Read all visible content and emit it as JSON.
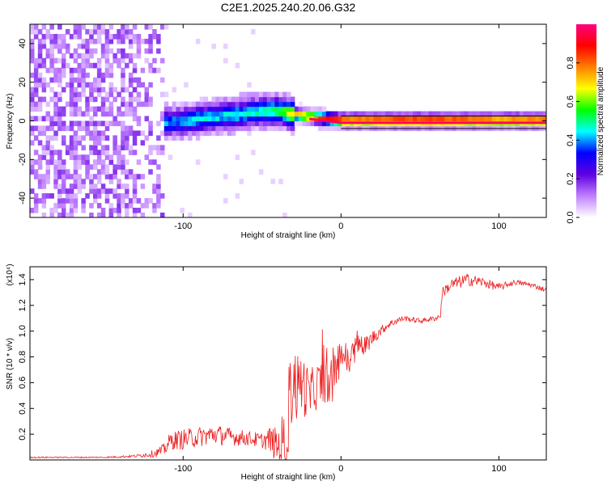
{
  "figure_title": "C2E1.2025.240.20.06.G32",
  "chart_data": [
    {
      "type": "heatmap",
      "title": "C2E1.2025.240.20.06.G32",
      "xlabel": "Height of straight line (km)",
      "ylabel": "Frequency (Hz)",
      "xlim": [
        -197,
        130
      ],
      "ylim": [
        -50,
        50
      ],
      "x_ticks": [
        "-100",
        "0",
        "100"
      ],
      "x_tick_values": [
        -100,
        0,
        100
      ],
      "y_ticks": [
        "-40",
        "-20",
        "0",
        "20",
        "40"
      ],
      "y_tick_values": [
        -40,
        -20,
        0,
        20,
        40
      ],
      "colorbar": {
        "label": "Normalized spectral amplitude",
        "range": [
          0,
          1
        ],
        "ticks": [
          "0.0",
          "0.2",
          "0.4",
          "0.6",
          "0.8"
        ],
        "tick_values": [
          0.0,
          0.2,
          0.4,
          0.6,
          0.8
        ],
        "colors": [
          "#ffffff",
          "#c080ff",
          "#6000e0",
          "#0000ff",
          "#00ffff",
          "#00ff00",
          "#ffff00",
          "#ff8000",
          "#ff0000",
          "#ff0080"
        ]
      },
      "ridge": {
        "x": [
          -130,
          -110,
          -90,
          -70,
          -50,
          -40,
          -30,
          -20,
          -10,
          0,
          20,
          40,
          60,
          80,
          100,
          130
        ],
        "freq": [
          -3,
          -2,
          0,
          2,
          4,
          4,
          2,
          1,
          0,
          -1,
          -1,
          -1,
          -1,
          -1,
          -1,
          -1
        ],
        "amplitude": [
          0.35,
          0.35,
          0.4,
          0.4,
          0.45,
          0.5,
          0.7,
          0.8,
          0.85,
          0.9,
          0.9,
          0.95,
          0.95,
          0.9,
          0.85,
          0.9
        ]
      }
    },
    {
      "type": "line",
      "xlabel": "Height of straight line (km)",
      "ylabel": "SNR (10 * v/v)",
      "y_multiplier": "(x10⁴)",
      "xlim": [
        -197,
        130
      ],
      "ylim": [
        0,
        1.5
      ],
      "x_ticks": [
        "-100",
        "0",
        "100"
      ],
      "x_tick_values": [
        -100,
        0,
        100
      ],
      "y_ticks": [
        "0.2",
        "0.4",
        "0.6",
        "0.8",
        "1.0",
        "1.2",
        "1.4"
      ],
      "y_tick_values": [
        0.2,
        0.4,
        0.6,
        0.8,
        1.0,
        1.2,
        1.4
      ],
      "series": [
        {
          "name": "SNR",
          "color": "#ee2020",
          "x": [
            -197,
            -150,
            -130,
            -118,
            -112,
            -108,
            -100,
            -90,
            -80,
            -70,
            -60,
            -50,
            -45,
            -40,
            -35,
            -32,
            -30,
            -28,
            -25,
            -20,
            -15,
            -10,
            -5,
            0,
            5,
            10,
            15,
            20,
            25,
            30,
            35,
            40,
            50,
            60,
            63,
            64,
            70,
            80,
            90,
            100,
            110,
            120,
            130
          ],
          "y": [
            0.02,
            0.02,
            0.03,
            0.05,
            0.08,
            0.15,
            0.16,
            0.18,
            0.2,
            0.18,
            0.17,
            0.15,
            0.16,
            0.1,
            0.15,
            0.5,
            0.65,
            0.55,
            0.6,
            0.5,
            0.58,
            0.62,
            0.6,
            0.85,
            0.75,
            0.9,
            0.88,
            0.95,
            1.0,
            1.05,
            1.08,
            1.1,
            1.08,
            1.1,
            1.12,
            1.3,
            1.36,
            1.4,
            1.38,
            1.34,
            1.38,
            1.36,
            1.32
          ],
          "noise_amplitude": [
            0.005,
            0.005,
            0.01,
            0.03,
            0.05,
            0.07,
            0.08,
            0.08,
            0.08,
            0.07,
            0.06,
            0.06,
            0.1,
            0.15,
            0.3,
            0.3,
            0.3,
            0.28,
            0.25,
            0.2,
            0.18,
            0.18,
            0.18,
            0.15,
            0.12,
            0.12,
            0.08,
            0.06,
            0.04,
            0.03,
            0.03,
            0.02,
            0.02,
            0.02,
            0.02,
            0.04,
            0.05,
            0.05,
            0.04,
            0.03,
            0.02,
            0.02,
            0.02
          ]
        }
      ]
    }
  ]
}
